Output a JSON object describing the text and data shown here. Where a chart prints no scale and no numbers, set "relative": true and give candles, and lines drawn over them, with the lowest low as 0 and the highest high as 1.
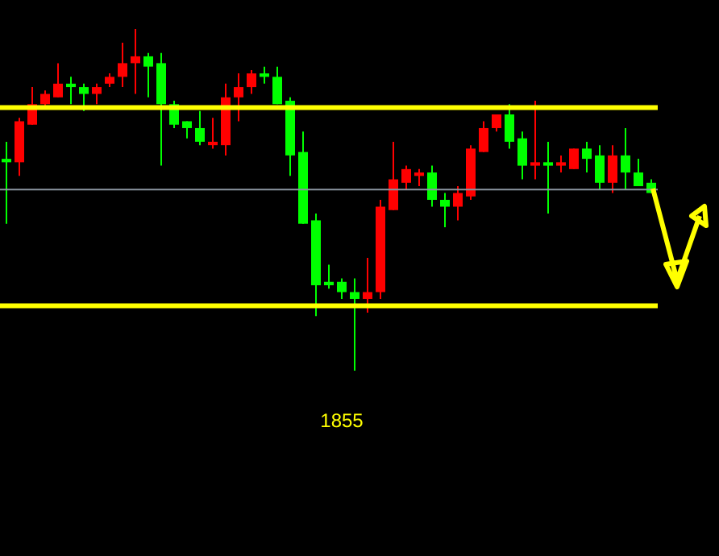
{
  "chart_data": {
    "type": "candlestick",
    "relative": true,
    "categories": [
      null,
      null,
      null,
      null,
      null,
      null,
      null,
      null,
      null,
      null,
      null,
      null,
      null,
      null,
      null,
      null,
      null,
      null,
      null,
      null,
      null,
      null,
      null,
      null,
      null,
      null,
      null,
      null,
      null,
      null,
      null,
      null,
      null,
      null,
      null,
      null,
      null,
      null,
      null,
      null,
      null,
      null,
      null,
      null,
      null,
      null,
      null,
      null,
      null,
      null,
      null
    ],
    "ohlc": [
      [
        0.62,
        0.67,
        0.43,
        0.61
      ],
      [
        0.61,
        0.74,
        0.57,
        0.73
      ],
      [
        0.72,
        0.83,
        0.72,
        0.78
      ],
      [
        0.78,
        0.82,
        0.77,
        0.81
      ],
      [
        0.8,
        0.9,
        0.8,
        0.84
      ],
      [
        0.84,
        0.86,
        0.78,
        0.83
      ],
      [
        0.83,
        0.84,
        0.76,
        0.81
      ],
      [
        0.81,
        0.84,
        0.78,
        0.83
      ],
      [
        0.84,
        0.87,
        0.83,
        0.86
      ],
      [
        0.86,
        0.96,
        0.83,
        0.9
      ],
      [
        0.9,
        1,
        0.81,
        0.92
      ],
      [
        0.92,
        0.93,
        0.8,
        0.89
      ],
      [
        0.9,
        0.93,
        0.6,
        0.78
      ],
      [
        0.78,
        0.79,
        0.71,
        0.72
      ],
      [
        0.73,
        0.73,
        0.68,
        0.71
      ],
      [
        0.71,
        0.76,
        0.66,
        0.67
      ],
      [
        0.66,
        0.74,
        0.65,
        0.67
      ],
      [
        0.66,
        0.84,
        0.63,
        0.8
      ],
      [
        0.8,
        0.87,
        0.73,
        0.83
      ],
      [
        0.83,
        0.88,
        0.81,
        0.87
      ],
      [
        0.87,
        0.89,
        0.84,
        0.86
      ],
      [
        0.86,
        0.89,
        0.78,
        0.78
      ],
      [
        0.79,
        0.8,
        0.57,
        0.63
      ],
      [
        0.64,
        0.7,
        0.43,
        0.43
      ],
      [
        0.44,
        0.46,
        0.16,
        0.25
      ],
      [
        0.26,
        0.31,
        0.24,
        0.25
      ],
      [
        0.26,
        0.27,
        0.21,
        0.23
      ],
      [
        0.23,
        0.27,
        0,
        0.21
      ],
      [
        0.21,
        0.33,
        0.17,
        0.23
      ],
      [
        0.23,
        0.5,
        0.21,
        0.48
      ],
      [
        0.47,
        0.67,
        0.47,
        0.56
      ],
      [
        0.55,
        0.6,
        0.53,
        0.59
      ],
      [
        0.57,
        0.59,
        0.54,
        0.58
      ],
      [
        0.58,
        0.6,
        0.48,
        0.5
      ],
      [
        0.5,
        0.52,
        0.42,
        0.48
      ],
      [
        0.48,
        0.54,
        0.44,
        0.52
      ],
      [
        0.51,
        0.66,
        0.5,
        0.65
      ],
      [
        0.64,
        0.73,
        0.64,
        0.71
      ],
      [
        0.71,
        0.75,
        0.7,
        0.75
      ],
      [
        0.75,
        0.78,
        0.65,
        0.67
      ],
      [
        0.68,
        0.7,
        0.56,
        0.6
      ],
      [
        0.6,
        0.79,
        0.56,
        0.61
      ],
      [
        0.61,
        0.67,
        0.46,
        0.6
      ],
      [
        0.6,
        0.63,
        0.58,
        0.61
      ],
      [
        0.59,
        0.65,
        0.59,
        0.65
      ],
      [
        0.65,
        0.67,
        0.58,
        0.62
      ],
      [
        0.63,
        0.66,
        0.53,
        0.55
      ],
      [
        0.55,
        0.66,
        0.52,
        0.63
      ],
      [
        0.63,
        0.71,
        0.53,
        0.58
      ],
      [
        0.58,
        0.62,
        0.54,
        0.54
      ],
      [
        0.55,
        0.56,
        0.52,
        0.52
      ]
    ],
    "colors": [
      "#00ff00",
      "#ff0000",
      "#ff0000",
      "#ff0000",
      "#ff0000",
      "#00ff00",
      "#00ff00",
      "#ff0000",
      "#ff0000",
      "#ff0000",
      "#ff0000",
      "#00ff00",
      "#00ff00",
      "#00ff00",
      "#00ff00",
      "#00ff00",
      "#ff0000",
      "#ff0000",
      "#ff0000",
      "#ff0000",
      "#00ff00",
      "#00ff00",
      "#00ff00",
      "#00ff00",
      "#00ff00",
      "#00ff00",
      "#00ff00",
      "#00ff00",
      "#ff0000",
      "#ff0000",
      "#ff0000",
      "#ff0000",
      "#ff0000",
      "#00ff00",
      "#00ff00",
      "#ff0000",
      "#ff0000",
      "#ff0000",
      "#ff0000",
      "#00ff00",
      "#00ff00",
      "#ff0000",
      "#00ff00",
      "#ff0000",
      "#ff0000",
      "#00ff00",
      "#00ff00",
      "#ff0000",
      "#00ff00",
      "#00ff00",
      "#00ff00"
    ],
    "ref_lines": [
      {
        "axis": "y",
        "value": 0.53,
        "color": "#8c96a0"
      },
      {
        "axis": "y",
        "value": 0.77,
        "color": "#ffff00"
      },
      {
        "axis": "y",
        "value": 0.19,
        "color": "#ffff00"
      }
    ],
    "annotations": [
      "1855"
    ]
  }
}
